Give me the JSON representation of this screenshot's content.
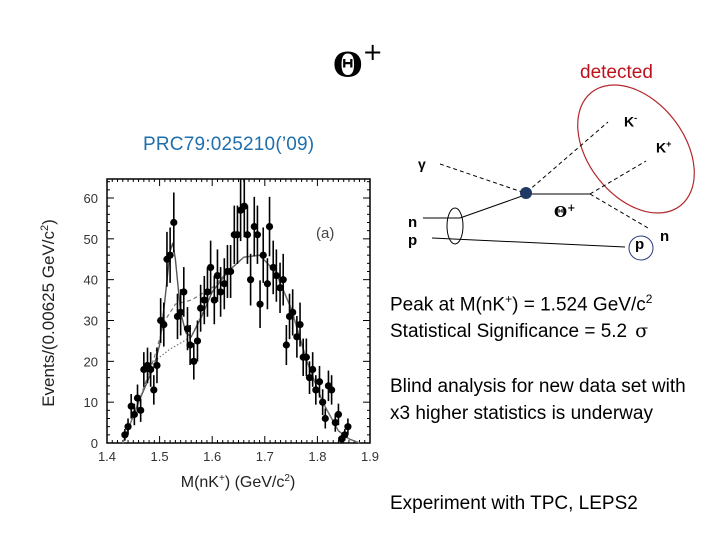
{
  "slide": {
    "title": {
      "particle_symbol": "Θ",
      "particle_charge": "+"
    },
    "reference": "PRC79:025210(’09)",
    "diagram": {
      "detected_label": "detected",
      "detected_color": "#c0121d",
      "labels": {
        "k_minus": "K",
        "k_minus_sup": "-",
        "k_plus": "K",
        "k_plus_sup": "+",
        "gamma": "γ",
        "n_in": "n",
        "p_in": "p",
        "theta": "Θ",
        "theta_sup": "+",
        "p_out": "p",
        "n_out": "n"
      },
      "vertex_color": "#1f3a64"
    },
    "results": {
      "peak_prefix": "Peak at M(nK",
      "peak_sup": "+",
      "peak_suffix": ") = 1.524 GeV/c",
      "peak_unit_sup": "2",
      "significance_text": "Statistical Significance = 5.2",
      "significance_symbol": "σ"
    },
    "blind_analysis": "Blind analysis for new data set with x3 higher statistics is underway",
    "experiment": "Experiment with TPC, LEPS2"
  },
  "chart_data": {
    "type": "scatter",
    "title": "",
    "panel_label": "(a)",
    "xlabel": "M(nK+) (GeV/c2)",
    "ylabel": "Events/(0.00625 GeV/c2)",
    "xlim": [
      1.4,
      1.9
    ],
    "ylim": [
      0,
      64
    ],
    "x_ticks": [
      "1.4",
      "1.5",
      "1.6",
      "1.7",
      "1.8",
      "1.9"
    ],
    "y_ticks": [
      "0",
      "10",
      "20",
      "30",
      "40",
      "50",
      "60"
    ],
    "grid": false,
    "series": [
      {
        "name": "data",
        "style": "points with error bars",
        "x": [
          1.434,
          1.44,
          1.446,
          1.452,
          1.458,
          1.464,
          1.47,
          1.477,
          1.483,
          1.489,
          1.495,
          1.502,
          1.508,
          1.514,
          1.52,
          1.527,
          1.534,
          1.54,
          1.546,
          1.553,
          1.558,
          1.565,
          1.572,
          1.578,
          1.585,
          1.591,
          1.597,
          1.604,
          1.61,
          1.616,
          1.623,
          1.629,
          1.635,
          1.642,
          1.648,
          1.654,
          1.661,
          1.667,
          1.673,
          1.68,
          1.686,
          1.691,
          1.697,
          1.705,
          1.709,
          1.716,
          1.722,
          1.729,
          1.735,
          1.741,
          1.747,
          1.753,
          1.761,
          1.767,
          1.773,
          1.779,
          1.785,
          1.791,
          1.797,
          1.804,
          1.81,
          1.815,
          1.821,
          1.827,
          1.834,
          1.84,
          1.846,
          1.852,
          1.858
        ],
        "values": [
          2,
          4,
          9,
          7,
          11,
          8,
          18,
          19,
          18,
          13,
          19,
          30,
          29,
          45,
          46,
          54,
          31,
          32,
          37,
          28,
          24,
          20,
          25,
          33,
          35,
          37,
          43,
          35,
          41,
          37,
          39,
          42,
          42,
          51,
          51,
          57,
          58,
          51,
          40,
          53,
          51,
          34,
          46,
          39,
          53,
          43,
          41,
          38,
          40,
          24,
          31,
          32,
          26,
          29,
          21,
          21,
          16,
          18,
          13,
          15,
          10,
          6,
          14,
          13,
          5,
          7,
          1,
          2,
          4
        ]
      },
      {
        "name": "fit (signal + background)",
        "style": "solid line",
        "x": [
          1.43,
          1.46,
          1.49,
          1.5,
          1.51,
          1.52,
          1.525,
          1.53,
          1.54,
          1.55,
          1.56,
          1.58,
          1.6,
          1.63,
          1.66,
          1.69,
          1.72,
          1.75,
          1.78,
          1.81,
          1.84,
          1.86,
          1.88
        ],
        "values": [
          0,
          10,
          19,
          24,
          35,
          47,
          49,
          45,
          32,
          27,
          26,
          31,
          37,
          42,
          45.5,
          46,
          42,
          33,
          20,
          10,
          3,
          1,
          0
        ]
      },
      {
        "name": "background (dashed)",
        "style": "dashed line",
        "x": [
          1.43,
          1.46,
          1.49,
          1.51,
          1.53,
          1.56,
          1.6,
          1.63,
          1.66,
          1.69,
          1.72,
          1.75,
          1.78,
          1.81,
          1.84,
          1.86,
          1.88
        ],
        "values": [
          0,
          10,
          21,
          30,
          34,
          35,
          38,
          42,
          45.5,
          46,
          42,
          33,
          20,
          10,
          3,
          1,
          0
        ]
      },
      {
        "name": "background (dotted)",
        "style": "dotted line",
        "x": [
          1.43,
          1.46,
          1.49,
          1.52,
          1.56,
          1.6,
          1.63,
          1.66,
          1.69,
          1.72,
          1.75,
          1.78,
          1.81,
          1.84,
          1.86,
          1.88
        ],
        "values": [
          0,
          10,
          20,
          23,
          26,
          37,
          42,
          45.5,
          46,
          42,
          33,
          20,
          10,
          3,
          1,
          0
        ]
      }
    ],
    "annotation": "Peak at 1.524 GeV/c2"
  }
}
